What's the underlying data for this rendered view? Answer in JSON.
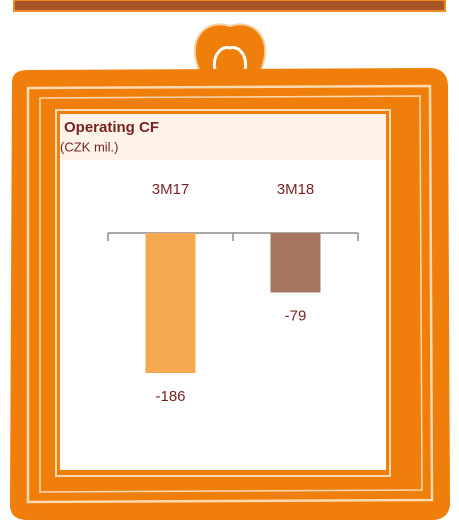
{
  "chart_data": {
    "type": "bar",
    "title": "Operating CF",
    "subtitle": "(CZK mil.)",
    "categories": [
      "3M17",
      "3M18"
    ],
    "values": [
      -186,
      -79
    ],
    "colors": [
      "#f5aa50",
      "#a77661"
    ]
  }
}
